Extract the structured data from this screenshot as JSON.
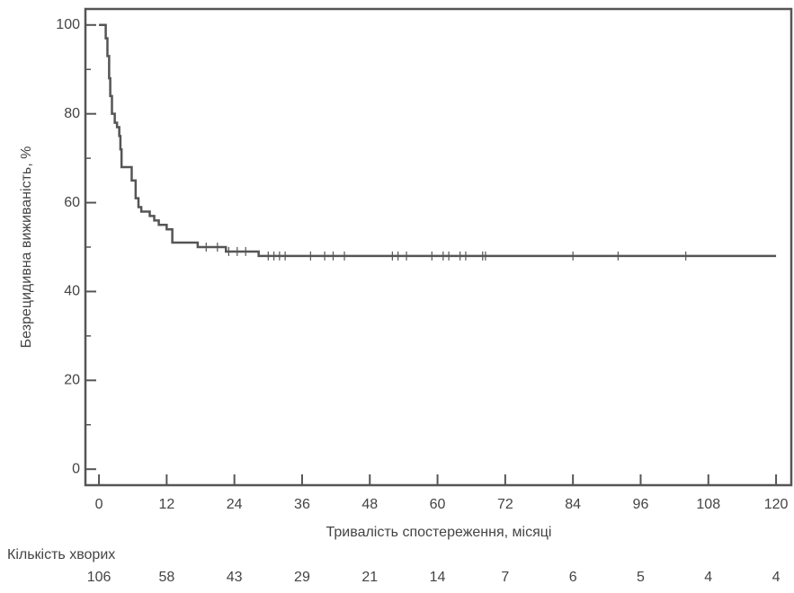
{
  "chart_data": {
    "type": "step",
    "y_label": "Безрецидивна виживаність, %",
    "x_label": "Тривалість спостереження, місяці",
    "xlim": [
      -2.4,
      122.7
    ],
    "ylim": [
      -3.6,
      103.6
    ],
    "xticks": [
      0,
      12,
      24,
      36,
      48,
      60,
      72,
      84,
      96,
      108,
      120
    ],
    "yticks": [
      0,
      20,
      40,
      60,
      80,
      100
    ],
    "yminor": [
      10,
      30,
      50,
      70,
      90
    ],
    "color": "#555555",
    "series": [
      {
        "x": [
          0,
          1,
          1.2,
          1.5,
          1.8,
          2,
          2.3,
          2.8,
          3.2,
          3.6,
          3.8,
          4,
          5.8,
          6.5,
          7,
          7.5,
          9,
          9.8,
          10.6,
          12,
          13,
          17.5,
          22.5,
          28.3,
          120
        ],
        "values": [
          100,
          100,
          97,
          93,
          88,
          84,
          80,
          78,
          77,
          75,
          72,
          68,
          65,
          61,
          59,
          58,
          57,
          56,
          55,
          54,
          51,
          50,
          49,
          48,
          48
        ]
      }
    ],
    "censored": {
      "x": [
        19,
        21,
        23,
        24.5,
        26,
        30,
        31,
        32,
        33,
        37.5,
        40,
        41.5,
        43.5,
        52,
        53,
        54.5,
        59,
        61,
        62,
        64,
        65,
        68,
        68.5,
        84,
        92,
        104
      ],
      "values": [
        50,
        50,
        49,
        49,
        49,
        48,
        48,
        48,
        48,
        48,
        48,
        48,
        48,
        48,
        48,
        48,
        48,
        48,
        48,
        48,
        48,
        48,
        48,
        48,
        48,
        48
      ]
    },
    "at_risk": {
      "label": "Кількість хворих",
      "values": [
        106,
        58,
        43,
        29,
        21,
        14,
        7,
        6,
        5,
        4,
        4
      ]
    }
  }
}
